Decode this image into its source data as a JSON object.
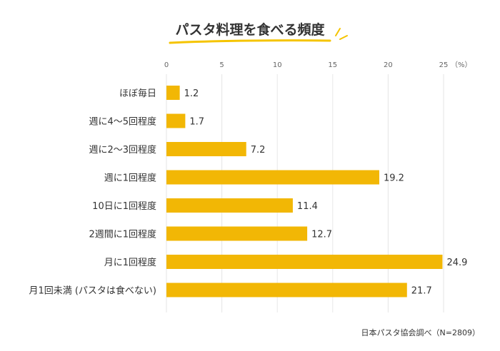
{
  "chart_data": {
    "type": "bar",
    "orientation": "horizontal",
    "title": "パスタ料理を食べる頻度",
    "categories": [
      "ほぼ毎日",
      "週に4〜5回程度",
      "週に2〜3回程度",
      "週に1回程度",
      "10日に1回程度",
      "2週間に1回程度",
      "月に1回程度",
      "月1回未満 (パスタは食べない)"
    ],
    "values": [
      1.2,
      1.7,
      7.2,
      19.2,
      11.4,
      12.7,
      24.9,
      21.7
    ],
    "value_labels": [
      "1.2",
      "1.7",
      "7.2",
      "19.2",
      "11.4",
      "12.7",
      "24.9",
      "21.7"
    ],
    "x_ticks": [
      0,
      5,
      10,
      15,
      20,
      25
    ],
    "x_unit": "（%）",
    "xlim": [
      0,
      25
    ],
    "grid": true,
    "bar_color": "#f2b705",
    "title_underline_color": "#f5c400",
    "source": "日本パスタ協会調べ（N=2809）"
  }
}
